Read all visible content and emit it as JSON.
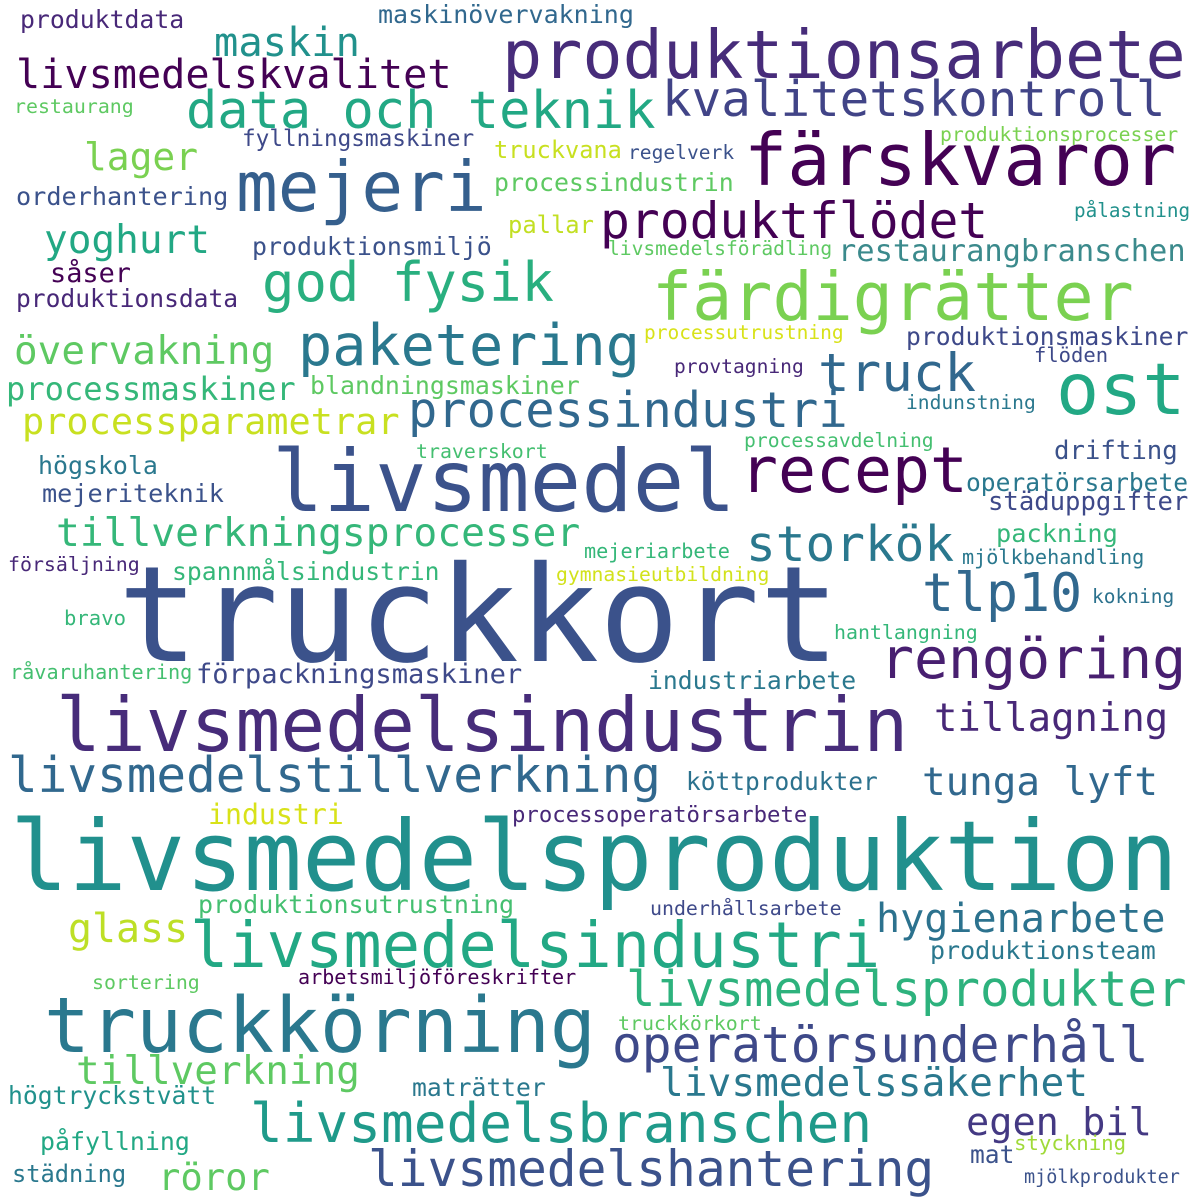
{
  "words": [
    {
      "text": "truckkort",
      "color": "#3b528b"
    },
    {
      "text": "livsmedelsproduktion",
      "color": "#21908d"
    },
    {
      "text": "livsmedel",
      "color": "#3b528b"
    },
    {
      "text": "livsmedelsindustrin",
      "color": "#472c7a"
    },
    {
      "text": "truckkörning",
      "color": "#2a788e"
    },
    {
      "text": "produktionsarbete",
      "color": "#472c7a"
    },
    {
      "text": "mejeri",
      "color": "#355f8d"
    },
    {
      "text": "färskvaror",
      "color": "#440154"
    },
    {
      "text": "livsmedelsindustri",
      "color": "#22a884"
    },
    {
      "text": "färdigrätter",
      "color": "#7ad151"
    },
    {
      "text": "ost",
      "color": "#22a884"
    },
    {
      "text": "data och teknik",
      "color": "#22a884"
    },
    {
      "text": "kvalitetskontroll",
      "color": "#414487"
    },
    {
      "text": "recept",
      "color": "#440154"
    },
    {
      "text": "paketering",
      "color": "#2a788e"
    },
    {
      "text": "livsmedelsbranschen",
      "color": "#1f9a8a"
    },
    {
      "text": "rengöring",
      "color": "#481f70"
    },
    {
      "text": "operatörsunderhåll",
      "color": "#3e4989"
    },
    {
      "text": "livsmedelstillverkning",
      "color": "#31688e"
    },
    {
      "text": "livsmedelshantering",
      "color": "#3b528b"
    },
    {
      "text": "processindustri",
      "color": "#31688e"
    },
    {
      "text": "livsmedelsprodukter",
      "color": "#2db27d"
    },
    {
      "text": "god fysik",
      "color": "#29af7f"
    },
    {
      "text": "produktflödet",
      "color": "#440154"
    },
    {
      "text": "tillverkningsprocesser",
      "color": "#35b779"
    },
    {
      "text": "storkök",
      "color": "#2a788e"
    },
    {
      "text": "truck",
      "color": "#31688e"
    },
    {
      "text": "tlp10",
      "color": "#31688e"
    },
    {
      "text": "livsmedelskvalitet",
      "color": "#440154"
    },
    {
      "text": "lager",
      "color": "#7ad151"
    },
    {
      "text": "maskin",
      "color": "#21918c"
    },
    {
      "text": "yoghurt",
      "color": "#22a884"
    },
    {
      "text": "tillverkning",
      "color": "#5ec962"
    },
    {
      "text": "livsmedelssäkerhet",
      "color": "#2a788e"
    },
    {
      "text": "hygienarbete",
      "color": "#2c728e"
    },
    {
      "text": "tunga lyft",
      "color": "#31688e"
    },
    {
      "text": "tillagning",
      "color": "#482878"
    },
    {
      "text": "egen bil",
      "color": "#443983"
    },
    {
      "text": "glass",
      "color": "#bddf26"
    },
    {
      "text": "övervakning",
      "color": "#5ec962"
    },
    {
      "text": "processparametrar",
      "color": "#c8e020"
    },
    {
      "text": "processmaskiner",
      "color": "#35b779"
    },
    {
      "text": "röror",
      "color": "#5ec962"
    },
    {
      "text": "restaurangbranschen",
      "color": "#3b8a8c"
    },
    {
      "text": "förpackningsmaskiner",
      "color": "#3e4989"
    },
    {
      "text": "produktionsutrustning",
      "color": "#44bf70"
    },
    {
      "text": "spannmålsindustrin",
      "color": "#35b779"
    },
    {
      "text": "produktionsmaskiner",
      "color": "#3e4989"
    },
    {
      "text": "industriarbete",
      "color": "#2a788e"
    },
    {
      "text": "operatörsarbete",
      "color": "#2a788e"
    },
    {
      "text": "städuppgifter",
      "color": "#3e4989"
    },
    {
      "text": "industri",
      "color": "#d8e219"
    },
    {
      "text": "blandningsmaskiner",
      "color": "#5ec962"
    },
    {
      "text": "produktionsmiljö",
      "color": "#3b528b"
    },
    {
      "text": "processindustrin",
      "color": "#5ec962"
    },
    {
      "text": "orderhantering",
      "color": "#3b528b"
    },
    {
      "text": "maskinövervakning",
      "color": "#31688e"
    },
    {
      "text": "produktdata",
      "color": "#482878"
    },
    {
      "text": "mejeriteknik",
      "color": "#3b528b"
    },
    {
      "text": "högskola",
      "color": "#2a788e"
    },
    {
      "text": "köttprodukter",
      "color": "#2c728e"
    },
    {
      "text": "processoperatörsarbete",
      "color": "#482878"
    },
    {
      "text": "underhållsarbete",
      "color": "#3e4989"
    },
    {
      "text": "packning",
      "color": "#35b779"
    },
    {
      "text": "drifting",
      "color": "#3b528b"
    },
    {
      "text": "mjölkbehandling",
      "color": "#2a788e"
    },
    {
      "text": "produktionsteam",
      "color": "#2a788e"
    },
    {
      "text": "högtryckstvätt",
      "color": "#21918c"
    },
    {
      "text": "påfyllning",
      "color": "#22a884"
    },
    {
      "text": "städning",
      "color": "#2a788e"
    },
    {
      "text": "maträtter",
      "color": "#2a788e"
    },
    {
      "text": "mjölkprodukter",
      "color": "#3b528b"
    },
    {
      "text": "mat",
      "color": "#3b528b"
    },
    {
      "text": "styckning",
      "color": "#a0da39"
    },
    {
      "text": "truckkörkort",
      "color": "#5ec962"
    },
    {
      "text": "arbetsmiljöföreskrifter",
      "color": "#440154"
    },
    {
      "text": "sortering",
      "color": "#5ec962"
    },
    {
      "text": "hantlangning",
      "color": "#35b779"
    },
    {
      "text": "kokning",
      "color": "#2c728e"
    },
    {
      "text": "råvaruhantering",
      "color": "#44bf70"
    },
    {
      "text": "bravo",
      "color": "#35b779"
    },
    {
      "text": "försäljning",
      "color": "#482878"
    },
    {
      "text": "gymnasieutbildning",
      "color": "#d2e21b"
    },
    {
      "text": "mejeriarbete",
      "color": "#35b779"
    },
    {
      "text": "traverskort",
      "color": "#44bf70"
    },
    {
      "text": "processavdelning",
      "color": "#44bf70"
    },
    {
      "text": "indunstning",
      "color": "#2a788e"
    },
    {
      "text": "provtagning",
      "color": "#482878"
    },
    {
      "text": "flöden",
      "color": "#3e4989"
    },
    {
      "text": "processutrustning",
      "color": "#d8e219"
    },
    {
      "text": "livsmedelsförädling",
      "color": "#5ec962"
    },
    {
      "text": "pallar",
      "color": "#c2df23"
    },
    {
      "text": "pålastning",
      "color": "#21918c"
    },
    {
      "text": "truckvana",
      "color": "#c8e020"
    },
    {
      "text": "regelverk",
      "color": "#3b528b"
    },
    {
      "text": "produktionsprocesser",
      "color": "#7ad151"
    },
    {
      "text": "fyllningsmaskiner",
      "color": "#3e4989"
    },
    {
      "text": "restaurang",
      "color": "#5ec962"
    },
    {
      "text": "såser",
      "color": "#440154"
    },
    {
      "text": "produktionsdata",
      "color": "#482878"
    }
  ]
}
